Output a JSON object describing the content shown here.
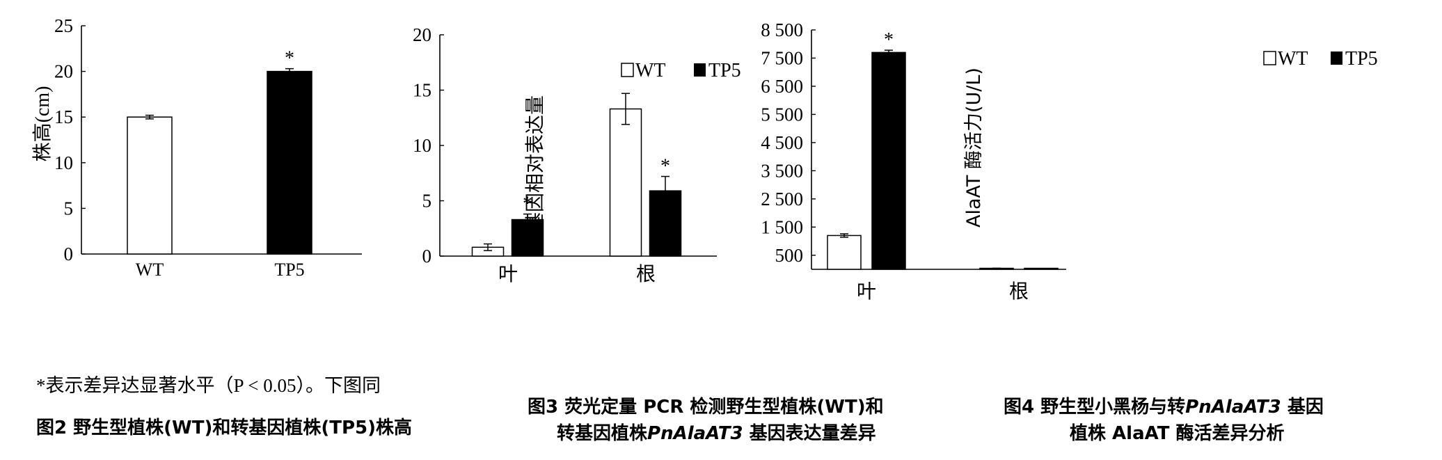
{
  "chart_data": [
    {
      "id": "fig2",
      "type": "bar",
      "categories": [
        "WT",
        "TP5"
      ],
      "values": [
        15.0,
        20.0
      ],
      "errors": [
        0.2,
        0.3
      ],
      "fills": [
        "#ffffff",
        "#000000"
      ],
      "significance": [
        "",
        "*"
      ],
      "ylabel": "株高(cm)",
      "xlabel": "",
      "ylim": [
        0,
        25
      ],
      "yticks": [
        "0",
        "5",
        "10",
        "15",
        "20",
        "25"
      ],
      "ytick_values": [
        0,
        5,
        10,
        15,
        20,
        25
      ],
      "note": "*表示差异达显著水平（P < 0.05）。下图同",
      "caption": "图2  野生型植株(WT)和转基因植株(TP5)株高"
    },
    {
      "id": "fig3",
      "type": "bar",
      "categories": [
        "叶",
        "根"
      ],
      "series": [
        {
          "name": "WT",
          "values": [
            0.8,
            13.3
          ],
          "errors": [
            0.3,
            1.4
          ],
          "significance": [
            "",
            ""
          ]
        },
        {
          "name": "TP5",
          "values": [
            3.3,
            5.9
          ],
          "errors": [
            0.5,
            1.3
          ],
          "significance": [
            "*",
            "*"
          ]
        }
      ],
      "colors": {
        "WT": "#ffffff",
        "TP5": "#000000"
      },
      "ylabel": "基因相对表达量",
      "ylim": [
        0,
        20
      ],
      "yticks": [
        "0",
        "5",
        "10",
        "15",
        "20"
      ],
      "ytick_values": [
        0,
        5,
        10,
        15,
        20
      ],
      "legend_position": "top-left",
      "caption_line1": "图3   荧光定量 PCR 检测野生型植株(WT)和",
      "caption_line2_a": "转基因植株",
      "caption_line2_b": "PnAlaAT3",
      "caption_line2_c": " 基因表达量差异"
    },
    {
      "id": "fig4",
      "type": "bar",
      "categories": [
        "叶",
        "根"
      ],
      "series": [
        {
          "name": "WT",
          "values": [
            1200,
            30
          ],
          "errors": [
            60,
            10
          ],
          "significance": [
            "",
            ""
          ]
        },
        {
          "name": "TP5",
          "values": [
            7700,
            20
          ],
          "errors": [
            80,
            5
          ],
          "significance": [
            "*",
            ""
          ]
        }
      ],
      "colors": {
        "WT": "#ffffff",
        "TP5": "#000000"
      },
      "ylabel": "AlaAT 酶活力(U/L)",
      "ylim": [
        0,
        8500
      ],
      "yticks": [
        "500",
        "1 500",
        "2 500",
        "3 500",
        "4 500",
        "5 500",
        "6 500",
        "7 500",
        "8 500"
      ],
      "ytick_values": [
        500,
        1500,
        2500,
        3500,
        4500,
        5500,
        6500,
        7500,
        8500
      ],
      "legend_position": "top-right",
      "caption_line1_a": "图4   野生型小黑杨与转",
      "caption_line1_b": "PnAlaAT3",
      "caption_line1_c": " 基因",
      "caption_line2": "植株 AlaAT 酶活差异分析"
    }
  ]
}
